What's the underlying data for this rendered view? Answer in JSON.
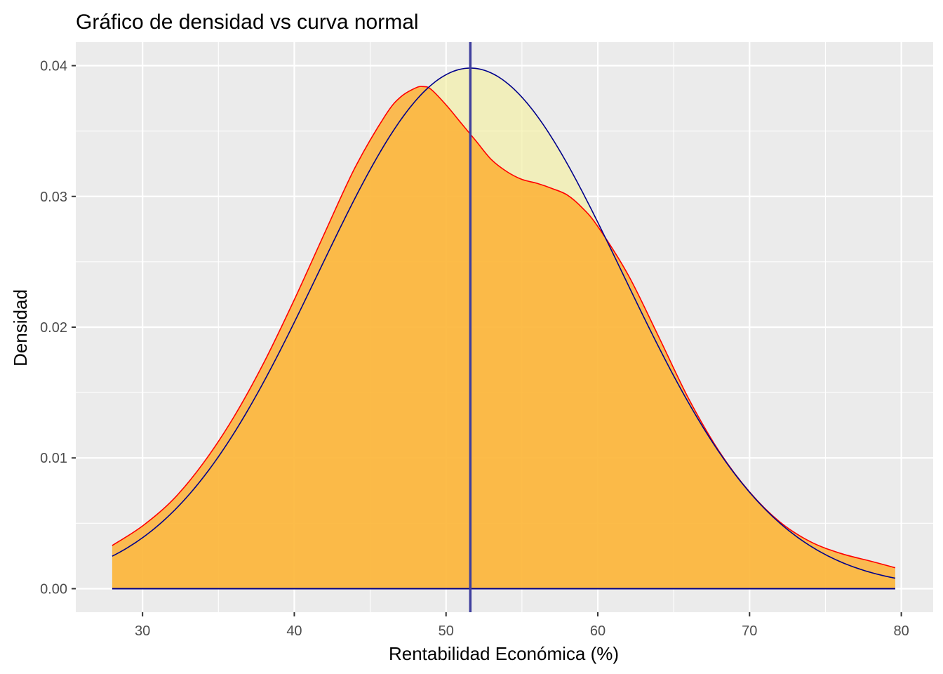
{
  "chart_data": {
    "type": "area",
    "title": "Gráfico de densidad vs curva normal",
    "xlabel": "Rentabilidad Económica (%)",
    "ylabel": "Densidad",
    "xlim": [
      25.6,
      82.1
    ],
    "ylim": [
      -0.0018,
      0.0418
    ],
    "x_ticks": [
      30,
      40,
      50,
      60,
      70,
      80
    ],
    "x_tick_labels": [
      "30",
      "40",
      "50",
      "60",
      "70",
      "80"
    ],
    "y_ticks": [
      0.0,
      0.01,
      0.02,
      0.03,
      0.04
    ],
    "y_tick_labels": [
      "0.00",
      "0.01",
      "0.02",
      "0.03",
      "0.04"
    ],
    "grid": true,
    "colors": {
      "panel": "#ebebeb",
      "grid": "#ffffff",
      "density_fill": "#fdae2e",
      "density_line": "#ff0000",
      "normal_fill": "#f5f19e",
      "normal_line": "#00008b",
      "mean_line": "#3f3f9e"
    },
    "mean_line_x": 51.6,
    "series": [
      {
        "kind": "density",
        "x": [
          28.0,
          30,
          32,
          34,
          36,
          38,
          40,
          42,
          44,
          46,
          47,
          48,
          48.5,
          49,
          50,
          51,
          52,
          53,
          54,
          55,
          56,
          57,
          58,
          59,
          60,
          62,
          64,
          66,
          68,
          70,
          72,
          74,
          76,
          78,
          79.6
        ],
        "y": [
          0.0033,
          0.0048,
          0.0068,
          0.0096,
          0.0131,
          0.0173,
          0.0221,
          0.0272,
          0.0322,
          0.0362,
          0.0376,
          0.0383,
          0.0384,
          0.0382,
          0.037,
          0.0356,
          0.0342,
          0.0328,
          0.0319,
          0.0313,
          0.031,
          0.0306,
          0.0301,
          0.0291,
          0.0277,
          0.024,
          0.0193,
          0.0145,
          0.0105,
          0.0074,
          0.0051,
          0.0036,
          0.0027,
          0.0021,
          0.0016
        ]
      },
      {
        "kind": "normal",
        "mean": 51.6,
        "sd": 10.02,
        "x_range": [
          28.0,
          79.6
        ]
      }
    ]
  }
}
